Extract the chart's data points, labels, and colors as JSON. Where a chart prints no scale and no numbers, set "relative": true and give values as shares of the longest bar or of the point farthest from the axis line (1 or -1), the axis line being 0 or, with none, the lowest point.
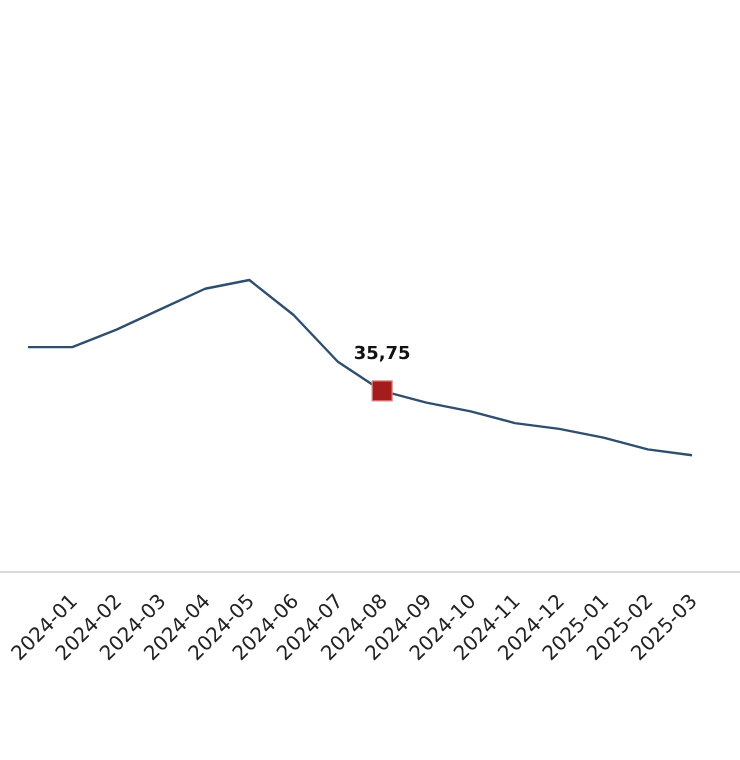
{
  "chart_data": {
    "type": "line",
    "relative": true,
    "categories": [
      null,
      "2024-01",
      "2024-02",
      "2024-03",
      "2024-04",
      "2024-05",
      "2024-06",
      "2024-07",
      "2024-08",
      "2024-09",
      "2024-10",
      "2024-11",
      "2024-12",
      "2025-01",
      "2025-02",
      "2025-03"
    ],
    "annotations": [
      {
        "text": "35,75",
        "x": "2024-08",
        "y": 0.62
      }
    ],
    "series": [
      {
        "color": "#2f4f6f",
        "values": [
          0.77,
          0.77,
          0.83,
          0.9,
          0.97,
          1,
          0.88,
          0.72,
          0.62,
          0.58,
          0.55,
          0.51,
          0.49,
          0.46,
          0.42,
          0.4
        ]
      },
      {
        "type": "scatter",
        "color": "#a51c1c",
        "marker": "square",
        "values": [
          null,
          null,
          null,
          null,
          null,
          null,
          null,
          null,
          0.62,
          null,
          null,
          null,
          null,
          null,
          null,
          null
        ]
      }
    ]
  }
}
